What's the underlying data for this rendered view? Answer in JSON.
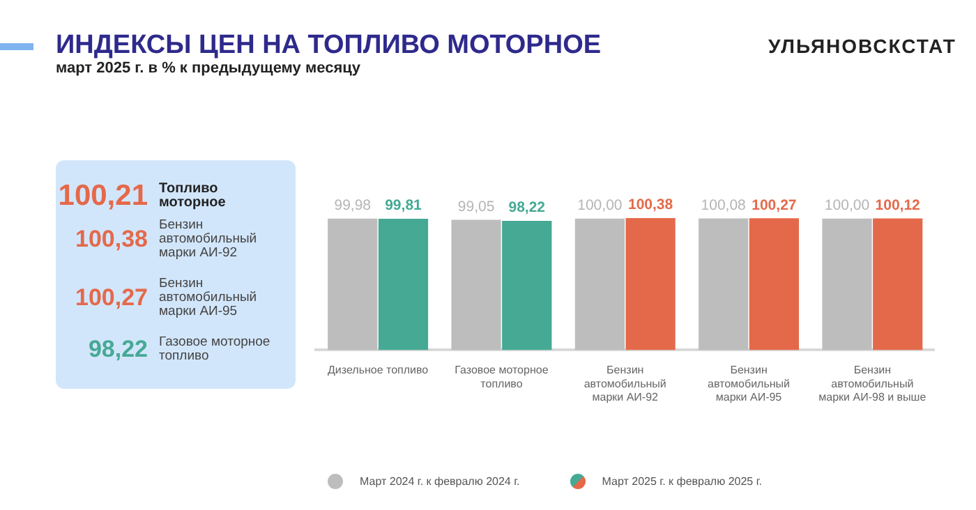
{
  "chart_data": [
    {
      "type": "other",
      "annotations": [
        "100,21",
        "Топливо моторное",
        "100,38",
        "Бензин автомобильный марки АИ-92",
        "100,27",
        "Бензин автомобильный марки АИ-95",
        "98,22",
        "Газовое моторное топливо"
      ]
    },
    {
      "type": "bar",
      "title": "ИНДЕКСЫ ЦЕН НА ТОПЛИВО МОТОРНОЕ",
      "subtitle": "март 2025 г. в % к предыдущему месяцу",
      "annotations": [
        "УЛЬЯНОВСКСТАТ"
      ],
      "categories": [
        "Дизельное топливо",
        "Газовое моторное топливо",
        "Бензин автомобильный марки АИ-92",
        "Бензин автомобильный марки АИ-95",
        "Бензин автомобильный марки АИ-98 и выше"
      ],
      "series": [
        {
          "name": "Март 2024 г. к февралю 2024 г.",
          "color": "#bdbdbd",
          "values": [
            99.98,
            99.05,
            100.0,
            100.08,
            100.0
          ],
          "value_labels": [
            "99,98",
            "99,05",
            "100,00",
            "100,08",
            "100,00"
          ]
        },
        {
          "name": "Март 2025 г. к февралю 2025 г.",
          "colors": [
            "#45a994",
            "#45a994",
            "#e4694a",
            "#e4694a",
            "#e4694a"
          ],
          "values": [
            99.81,
            98.22,
            100.38,
            100.27,
            100.12
          ],
          "value_labels": [
            "99,81",
            "98,22",
            "100,38",
            "100,27",
            "100,12"
          ]
        }
      ],
      "grid": false,
      "legend": "bottom",
      "tick_labels": "x"
    }
  ]
}
